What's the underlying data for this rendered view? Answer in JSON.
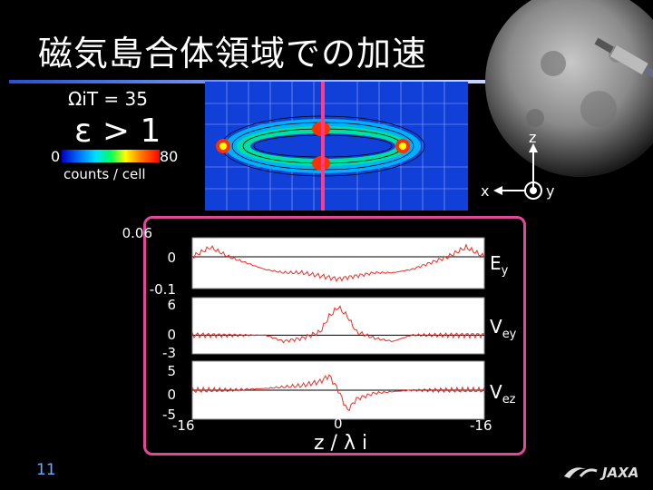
{
  "slide": {
    "title": "磁気島合体領域での加速",
    "page_number": "11",
    "params": {
      "omega_t": "ΩiT = 35",
      "epsilon": "ε  > 1"
    },
    "colorbar": {
      "min": "0",
      "max": "80",
      "unit": "counts / cell"
    },
    "coord_axes": {
      "z": "z",
      "x": "x",
      "y": "y"
    },
    "xlabel": "z / λ i",
    "logo_text": "JAXA"
  },
  "chart_data": {
    "type": "line",
    "xlabel": "z / λ i",
    "xlim": [
      -16,
      16
    ],
    "x_ticks": [
      -16,
      0,
      -16
    ],
    "panels": [
      {
        "name": "Ey",
        "ylim": [
          -0.1,
          0.06
        ],
        "yticks": [
          "0.06",
          "0",
          "-0.1"
        ],
        "x": [
          -16,
          -14,
          -12,
          -10,
          -8,
          -6,
          -4,
          -2,
          0,
          2,
          4,
          6,
          8,
          10,
          12,
          14,
          16
        ],
        "values": [
          0.0,
          0.03,
          0.0,
          -0.02,
          -0.04,
          -0.05,
          -0.05,
          -0.06,
          -0.07,
          -0.06,
          -0.05,
          -0.05,
          -0.04,
          -0.02,
          0.0,
          0.03,
          0.0
        ]
      },
      {
        "name": "Vey",
        "ylim": [
          -3,
          6
        ],
        "yticks": [
          "6",
          "0",
          "-3"
        ],
        "x": [
          -16,
          -12,
          -8,
          -6,
          -4,
          -2,
          -1,
          0,
          1,
          2,
          4,
          6,
          8,
          12,
          16
        ],
        "values": [
          0,
          0,
          0,
          -1,
          -0.5,
          0.5,
          3,
          4.5,
          3,
          0.5,
          -0.5,
          -1,
          0,
          0,
          0
        ]
      },
      {
        "name": "Vez",
        "ylim": [
          -5,
          5
        ],
        "yticks": [
          "5",
          "0",
          "-5"
        ],
        "x": [
          -16,
          -12,
          -8,
          -4,
          -2,
          -1,
          0,
          1,
          2,
          4,
          8,
          12,
          16
        ],
        "values": [
          0,
          0,
          0.3,
          0.8,
          1.5,
          2.5,
          0,
          -3.5,
          -1.5,
          -0.5,
          0,
          0,
          0
        ]
      }
    ],
    "right_labels": [
      "Ey",
      "Vey",
      "Vez"
    ]
  }
}
